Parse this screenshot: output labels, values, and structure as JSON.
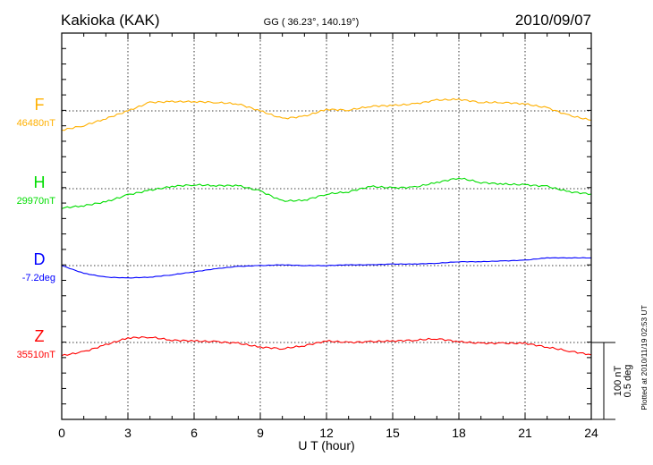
{
  "header": {
    "station": "Kakioka (KAK)",
    "coords": "GG ( 36.23°, 140.19°)",
    "date": "2010/09/07"
  },
  "footer": {
    "plotted": "Plotted at 2010/11/19 02:53 UT",
    "scale_nt": "100 nT",
    "scale_deg": "0.5 deg"
  },
  "chart_data": {
    "type": "line",
    "title": "Kakioka (KAK) 2010/09/07",
    "xlabel": "U T (hour)",
    "xlim": [
      0,
      24
    ],
    "xticks": [
      "0",
      "3",
      "6",
      "9",
      "12",
      "15",
      "18",
      "21",
      "24"
    ],
    "grid": true,
    "x": [
      0,
      1,
      2,
      3,
      4,
      5,
      6,
      7,
      8,
      9,
      10,
      11,
      12,
      13,
      14,
      15,
      16,
      17,
      18,
      19,
      20,
      21,
      22,
      23,
      24
    ],
    "series": [
      {
        "name": "F",
        "baseline_label": "46480nT",
        "unit": "nT",
        "color": "#ffb000",
        "values": [
          -25,
          -19,
          -10,
          0,
          11,
          12,
          12,
          11,
          9,
          0,
          -10,
          -7,
          2,
          1,
          6,
          7,
          9,
          14,
          15,
          11,
          11,
          9,
          4,
          -6,
          -12
        ]
      },
      {
        "name": "H",
        "baseline_label": "29970nT",
        "unit": "nT",
        "color": "#00dd00",
        "values": [
          -25,
          -22,
          -17,
          -8,
          -2,
          3,
          5,
          4,
          4,
          -3,
          -16,
          -15,
          -7,
          -4,
          3,
          1,
          2,
          8,
          14,
          8,
          6,
          5,
          3,
          -4,
          -7
        ]
      },
      {
        "name": "D",
        "baseline_label": "-7.2deg",
        "unit": "deg",
        "color": "#0000ff",
        "values": [
          0,
          -0.05,
          -0.075,
          -0.08,
          -0.075,
          -0.06,
          -0.04,
          -0.02,
          -0.005,
          0,
          0.005,
          0,
          0,
          0.005,
          0.005,
          0.01,
          0.01,
          0.015,
          0.025,
          0.025,
          0.03,
          0.035,
          0.05,
          0.05,
          0.05
        ]
      },
      {
        "name": "Z",
        "baseline_label": "35510nT",
        "unit": "nT",
        "color": "#ff0000",
        "values": [
          -17,
          -12,
          -3,
          6,
          7,
          3,
          2,
          1,
          -1,
          -6,
          -8,
          -4,
          2,
          0,
          1,
          2,
          3,
          5,
          1,
          -1,
          -1,
          -1,
          -6,
          -11,
          -16
        ]
      }
    ],
    "scale": {
      "nT_per_bar": 100,
      "deg_per_bar": 0.5
    }
  }
}
